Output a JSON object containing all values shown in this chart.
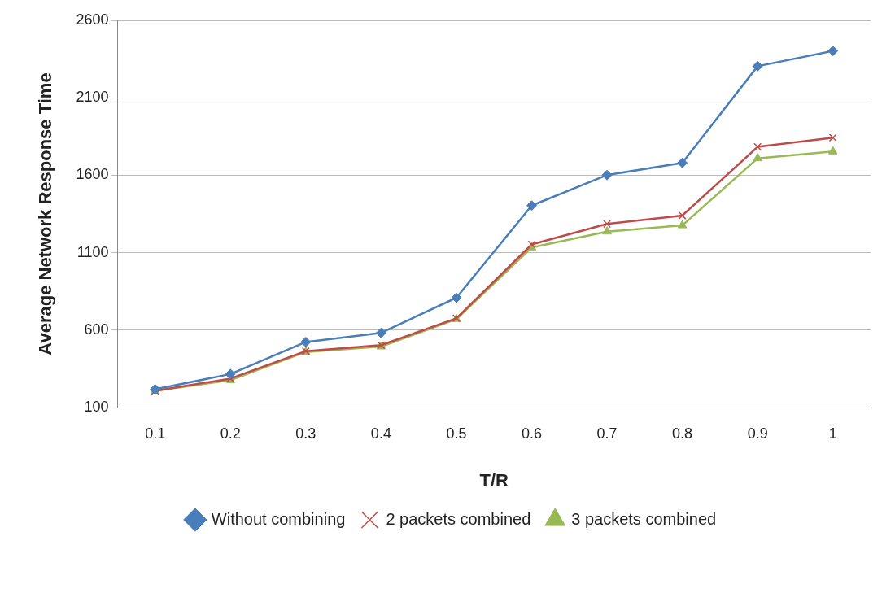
{
  "chart_data": {
    "type": "line",
    "xlabel": "T/R",
    "ylabel": "Average Network Response Time",
    "categories": [
      "0.1",
      "0.2",
      "0.3",
      "0.4",
      "0.5",
      "0.6",
      "0.7",
      "0.8",
      "0.9",
      "1"
    ],
    "series": [
      {
        "name": "Without combining",
        "color": "#4a7ebb",
        "marker": "diamond",
        "values": [
          218,
          316,
          523,
          582,
          809,
          1404,
          1601,
          1680,
          2304,
          2403
        ]
      },
      {
        "name": "2 packets combined",
        "color": "#be4b48",
        "marker": "cross",
        "values": [
          208,
          287,
          464,
          503,
          676,
          1153,
          1286,
          1340,
          1783,
          1842
        ]
      },
      {
        "name": "3 packets combined",
        "color": "#98b954",
        "marker": "triangle",
        "values": [
          208,
          277,
          459,
          494,
          671,
          1133,
          1236,
          1276,
          1709,
          1753
        ]
      }
    ],
    "ylim": [
      100,
      2600
    ],
    "yticks": [
      100,
      600,
      1100,
      1600,
      2100,
      2600
    ],
    "grid": "y",
    "legend": "bottom"
  }
}
